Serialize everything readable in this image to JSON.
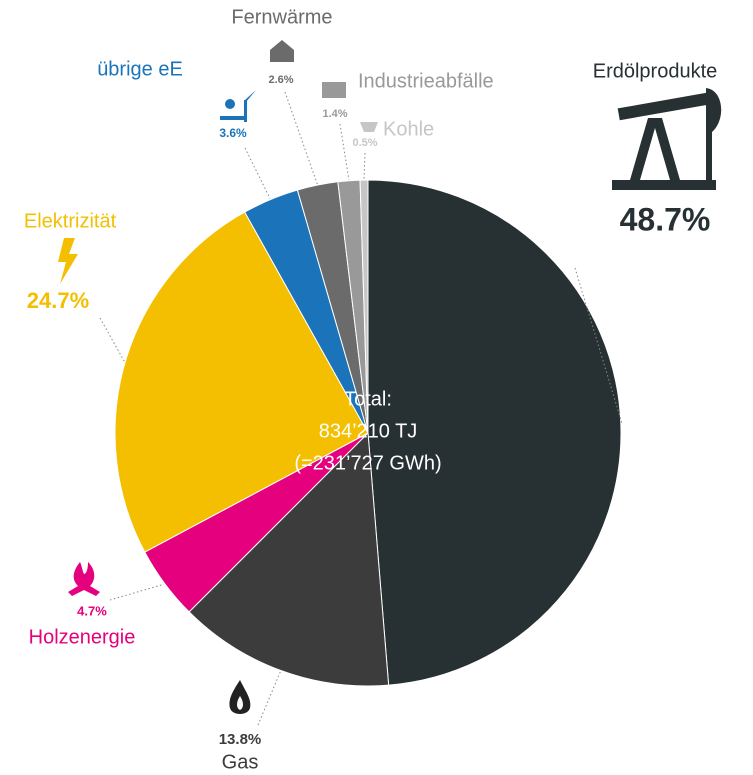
{
  "chart_data": {
    "type": "pie",
    "categories": [
      "Erdölprodukte",
      "Gas",
      "Holzenergie",
      "Elektrizität",
      "übrige eE",
      "Fernwärme",
      "Industrieabfälle",
      "Kohle"
    ],
    "values": [
      48.7,
      13.8,
      4.7,
      24.7,
      3.6,
      2.6,
      1.4,
      0.5
    ],
    "value_labels": [
      "48.7%",
      "13.8%",
      "4.7%",
      "24.7%",
      "3.6%",
      "2.6%",
      "1.4%",
      "0.5%"
    ],
    "colors": [
      "#273133",
      "#3c3c3c",
      "#e5007d",
      "#f4bf00",
      "#1b74ba",
      "#6b6b6b",
      "#999999",
      "#c6c6c6"
    ],
    "center_text": [
      "Total:",
      "834’210 TJ",
      "(=231’727 GWh)"
    ]
  }
}
